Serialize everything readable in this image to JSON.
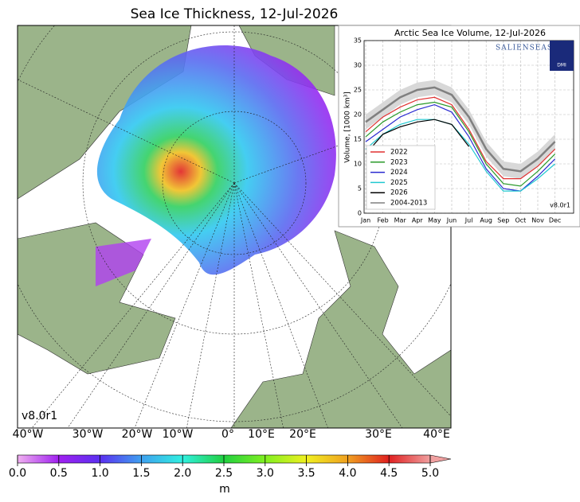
{
  "map": {
    "title": "Sea Ice Thickness, 12-Jul-2026",
    "version": "v8.0r1",
    "lon_labels": [
      "40°W",
      "30°W",
      "20°W",
      "10°W",
      "0°",
      "10°E",
      "20°E",
      "30°E",
      "40°E"
    ],
    "colorbar": {
      "lim": [
        0,
        5
      ],
      "ticks": [
        {
          "value": 0,
          "label": "0.0"
        },
        0.5,
        {
          "value": 1,
          "label": "1.0"
        },
        1.5,
        {
          "value": 2,
          "label": "2.0"
        },
        2.5,
        {
          "value": 3,
          "label": "3.0"
        },
        3.5,
        {
          "value": 4,
          "label": "4.0"
        },
        4.5,
        {
          "value": 5,
          "label": "5.0"
        }
      ],
      "unit": "m"
    }
  },
  "chart_data": {
    "type": "line",
    "title": "Arctic Sea Ice Volume, 12-Jul-2026",
    "y_label": "Volume, [1000 km³]",
    "logo": "SALIENSEAS",
    "logo_badge": "DMI",
    "version": "v8.0r1",
    "categories": [
      "Jan",
      "Feb",
      "Mar",
      "Apr",
      "May",
      "Jun",
      "Jul",
      "Aug",
      "Sep",
      "Oct",
      "Nov",
      "Dec"
    ],
    "ylim": [
      0,
      35
    ],
    "yticks": [
      0,
      5,
      10,
      15,
      20,
      25,
      30,
      35
    ],
    "grid": true,
    "series": [
      {
        "name": "2022",
        "color": "#e03030",
        "values": [
          16.5,
          19.5,
          21.5,
          23,
          23.5,
          22,
          17,
          10.5,
          7,
          7,
          9.5,
          13
        ]
      },
      {
        "name": "2023",
        "color": "#2a9a2a",
        "values": [
          15.5,
          18.5,
          20.5,
          22,
          22.5,
          21.5,
          16.5,
          10,
          6,
          5.5,
          8.5,
          12
        ]
      },
      {
        "name": "2024",
        "color": "#2a2ad0",
        "values": [
          14.5,
          17,
          19.5,
          21,
          22,
          20.5,
          15.5,
          9,
          5,
          4.5,
          7.5,
          11
        ]
      },
      {
        "name": "2025",
        "color": "#20c8d0",
        "values": [
          13,
          16,
          18,
          19,
          19,
          18,
          14,
          8.5,
          4.5,
          4.5,
          7,
          10
        ]
      },
      {
        "name": "2026",
        "color": "#000000",
        "values": [
          12,
          16,
          17.5,
          18.5,
          19,
          18,
          13.5,
          null,
          null,
          null,
          null,
          null
        ]
      },
      {
        "name": "2004-2013",
        "color": "#808080",
        "values": [
          18.5,
          21,
          23.5,
          25,
          25.5,
          24,
          19.5,
          13,
          9,
          8.5,
          11,
          14.5
        ]
      }
    ],
    "band": {
      "color": "#d8d8d8",
      "lower": [
        17,
        19.5,
        22,
        23.5,
        24,
        22.5,
        18,
        11.5,
        7.5,
        7,
        9.5,
        13
      ],
      "upper": [
        20,
        22.5,
        25,
        26.5,
        27,
        25.5,
        21,
        14.5,
        10.5,
        10,
        12.5,
        16
      ]
    }
  }
}
